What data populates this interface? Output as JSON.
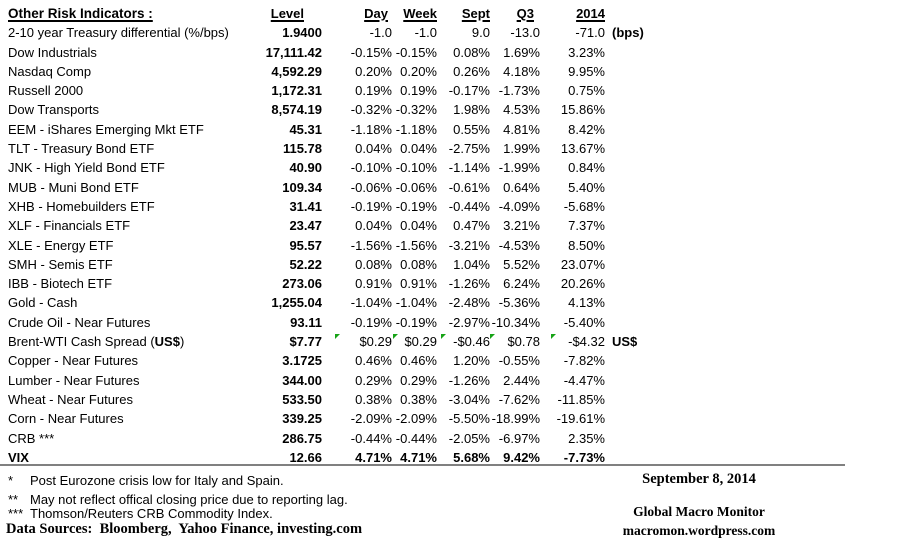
{
  "colors": {
    "flag_green": "#17a317",
    "rule_gray": "#808080",
    "text": "#000000",
    "background": "#ffffff"
  },
  "table": {
    "title": "Other Risk Indicators :",
    "columns": [
      "Level",
      "Day",
      "Week",
      "Sept",
      "Q3",
      "2014"
    ],
    "rows": [
      {
        "name": "2-10 year Treasury differential (%/bps)",
        "level": "1.9400",
        "day": "-1.0",
        "week": "-1.0",
        "sept": "9.0",
        "q3": "-13.0",
        "y2014": "-71.0",
        "suffix": "(bps)"
      },
      {
        "name": "Dow Industrials",
        "level": "17,111.42",
        "day": "-0.15%",
        "week": "-0.15%",
        "sept": "0.08%",
        "q3": "1.69%",
        "y2014": "3.23%"
      },
      {
        "name": "Nasdaq Comp",
        "level": "4,592.29",
        "day": "0.20%",
        "week": "0.20%",
        "sept": "0.26%",
        "q3": "4.18%",
        "y2014": "9.95%"
      },
      {
        "name": "Russell 2000",
        "level": "1,172.31",
        "day": "0.19%",
        "week": "0.19%",
        "sept": "-0.17%",
        "q3": "-1.73%",
        "y2014": "0.75%"
      },
      {
        "name": "Dow Transports",
        "level": "8,574.19",
        "day": "-0.32%",
        "week": "-0.32%",
        "sept": "1.98%",
        "q3": "4.53%",
        "y2014": "15.86%"
      },
      {
        "name": "EEM - iShares Emerging Mkt ETF",
        "level": "45.31",
        "day": "-1.18%",
        "week": "-1.18%",
        "sept": "0.55%",
        "q3": "4.81%",
        "y2014": "8.42%"
      },
      {
        "name": "TLT - Treasury Bond ETF",
        "level": "115.78",
        "day": "0.04%",
        "week": "0.04%",
        "sept": "-2.75%",
        "q3": "1.99%",
        "y2014": "13.67%"
      },
      {
        "name": "JNK - High Yield Bond ETF",
        "level": "40.90",
        "day": "-0.10%",
        "week": "-0.10%",
        "sept": "-1.14%",
        "q3": "-1.99%",
        "y2014": "0.84%"
      },
      {
        "name": "MUB - Muni Bond ETF",
        "level": "109.34",
        "day": "-0.06%",
        "week": "-0.06%",
        "sept": "-0.61%",
        "q3": "0.64%",
        "y2014": "5.40%"
      },
      {
        "name": "XHB - Homebuilders ETF",
        "level": "31.41",
        "day": "-0.19%",
        "week": "-0.19%",
        "sept": "-0.44%",
        "q3": "-4.09%",
        "y2014": "-5.68%"
      },
      {
        "name": "XLF - Financials ETF",
        "level": "23.47",
        "day": "0.04%",
        "week": "0.04%",
        "sept": "0.47%",
        "q3": "3.21%",
        "y2014": "7.37%"
      },
      {
        "name": "XLE - Energy ETF",
        "level": "95.57",
        "day": "-1.56%",
        "week": "-1.56%",
        "sept": "-3.21%",
        "q3": "-4.53%",
        "y2014": "8.50%"
      },
      {
        "name": "SMH - Semis ETF",
        "level": "52.22",
        "day": "0.08%",
        "week": "0.08%",
        "sept": "1.04%",
        "q3": "5.52%",
        "y2014": "23.07%"
      },
      {
        "name": "IBB - Biotech ETF",
        "level": "273.06",
        "day": "0.91%",
        "week": "0.91%",
        "sept": "-1.26%",
        "q3": "6.24%",
        "y2014": "20.26%"
      },
      {
        "name": "Gold - Cash",
        "level": "1,255.04",
        "day": "-1.04%",
        "week": "-1.04%",
        "sept": "-2.48%",
        "q3": "-5.36%",
        "y2014": "4.13%"
      },
      {
        "name": "Crude Oil - Near Futures",
        "level": "93.11",
        "day": "-0.19%",
        "week": "-0.19%",
        "sept": "-2.97%",
        "q3": "-10.34%",
        "y2014": "-5.40%"
      },
      {
        "name": "Brent-WTI Cash Spread (US$)",
        "name_parts": [
          {
            "t": "Brent-WTI Cash Spread (",
            "b": false
          },
          {
            "t": "US$",
            "b": true
          },
          {
            "t": ")",
            "b": false
          }
        ],
        "level": "$7.77",
        "day": "$0.29",
        "week": "$0.29",
        "sept": "-$0.46",
        "q3": "$0.78",
        "y2014": "-$4.32",
        "suffix": "US$",
        "flags": [
          "day",
          "week",
          "sept",
          "q3",
          "y2014"
        ]
      },
      {
        "name": "Copper - Near Futures",
        "level": "3.1725",
        "day": "0.46%",
        "week": "0.46%",
        "sept": "1.20%",
        "q3": "-0.55%",
        "y2014": "-7.82%"
      },
      {
        "name": "Lumber - Near Futures",
        "level": "344.00",
        "day": "0.29%",
        "week": "0.29%",
        "sept": "-1.26%",
        "q3": "2.44%",
        "y2014": "-4.47%"
      },
      {
        "name": "Wheat - Near Futures",
        "level": "533.50",
        "day": "0.38%",
        "week": "0.38%",
        "sept": "-3.04%",
        "q3": "-7.62%",
        "y2014": "-11.85%"
      },
      {
        "name": "Corn - Near Futures",
        "level": "339.25",
        "day": "-2.09%",
        "week": "-2.09%",
        "sept": "-5.50%",
        "q3": "-18.99%",
        "y2014": "-19.61%"
      },
      {
        "name": "CRB ***",
        "level": "286.75",
        "day": "-0.44%",
        "week": "-0.44%",
        "sept": "-2.05%",
        "q3": "-6.97%",
        "y2014": "2.35%"
      },
      {
        "name": "VIX",
        "level": "12.66",
        "day": "4.71%",
        "week": "4.71%",
        "sept": "5.68%",
        "q3": "9.42%",
        "y2014": "-7.73%",
        "bold": true
      }
    ]
  },
  "footer": {
    "notes": [
      {
        "marker": "*",
        "text": "Post Eurozone crisis low for Italy and Spain."
      },
      {
        "marker": "**",
        "text": "May not reflect offical closing price due to reporting lag."
      },
      {
        "marker": "***",
        "text": "Thomson/Reuters CRB Commodity Index."
      }
    ],
    "data_sources": "Data Sources:  Bloomberg,  Yahoo Finance, investing.com",
    "date": "September 8, 2014",
    "brand": "Global Macro Monitor",
    "url": "macromon.wordpress.com"
  }
}
